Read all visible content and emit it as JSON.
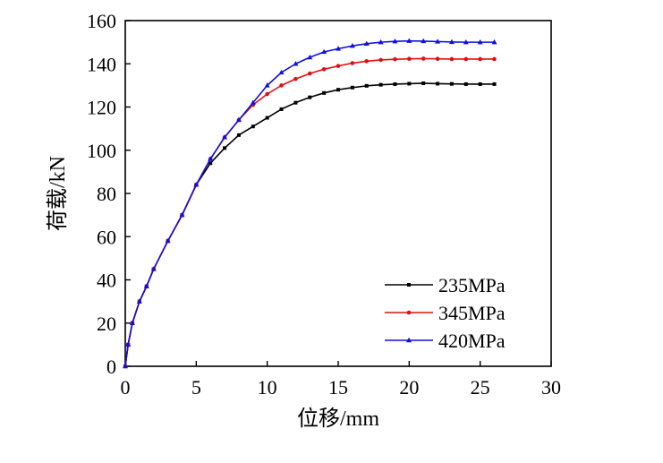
{
  "chart_data": {
    "type": "line",
    "xlabel": "位移/mm",
    "ylabel": "荷载/kN",
    "xlim": [
      0,
      30
    ],
    "ylim": [
      0,
      160
    ],
    "xticks": [
      0,
      5,
      10,
      15,
      20,
      25,
      30
    ],
    "yticks": [
      0,
      20,
      40,
      60,
      80,
      100,
      120,
      140,
      160
    ],
    "grid": false,
    "legend_position": "bottom-right",
    "series": [
      {
        "name": "235MPa",
        "color": "#000000",
        "marker": "square",
        "x": [
          0,
          0.2,
          0.5,
          1,
          1.5,
          2,
          3,
          4,
          5,
          6,
          7,
          8,
          9,
          10,
          11,
          12,
          13,
          14,
          15,
          16,
          17,
          18,
          19,
          20,
          21,
          22,
          23,
          24,
          25,
          26
        ],
        "y": [
          0,
          10,
          20,
          30,
          37,
          45,
          58,
          70,
          84,
          94,
          101,
          107,
          111,
          115,
          119,
          122,
          124.5,
          126.5,
          128,
          129,
          129.8,
          130.3,
          130.6,
          130.8,
          131,
          130.8,
          130.7,
          130.6,
          130.6,
          130.6
        ]
      },
      {
        "name": "345MPa",
        "color": "#e01010",
        "marker": "circle",
        "x": [
          0,
          0.2,
          0.5,
          1,
          1.5,
          2,
          3,
          4,
          5,
          6,
          7,
          8,
          9,
          10,
          11,
          12,
          13,
          14,
          15,
          16,
          17,
          18,
          19,
          20,
          21,
          22,
          23,
          24,
          25,
          26
        ],
        "y": [
          0,
          10,
          20,
          30,
          37,
          45,
          58,
          70,
          84,
          96,
          106,
          114,
          121,
          126,
          130,
          133,
          135.5,
          137.5,
          139,
          140.3,
          141.2,
          141.8,
          142.1,
          142.3,
          142.4,
          142.3,
          142.2,
          142.2,
          142.2,
          142.2
        ]
      },
      {
        "name": "420MPa",
        "color": "#1010e0",
        "marker": "triangle",
        "x": [
          0,
          0.2,
          0.5,
          1,
          1.5,
          2,
          3,
          4,
          5,
          6,
          7,
          8,
          9,
          10,
          11,
          12,
          13,
          14,
          15,
          16,
          17,
          18,
          19,
          20,
          21,
          22,
          23,
          24,
          25,
          26
        ],
        "y": [
          0,
          10,
          20,
          30,
          37,
          45,
          58,
          70,
          84,
          96,
          106,
          114,
          122,
          130,
          136,
          140,
          143,
          145.5,
          147,
          148.3,
          149.3,
          150,
          150.4,
          150.6,
          150.5,
          150.3,
          150.1,
          150,
          150,
          150
        ]
      }
    ]
  }
}
